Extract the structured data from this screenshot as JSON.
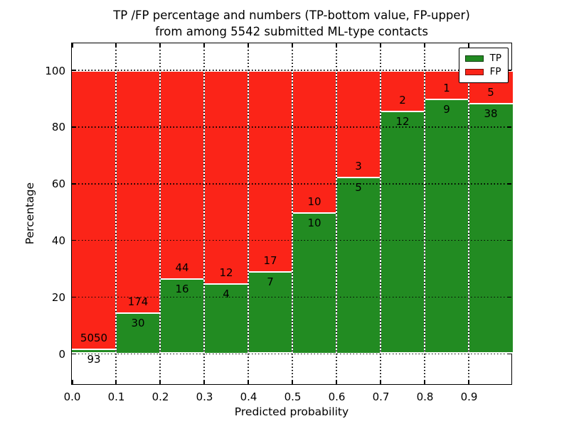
{
  "chart_data": {
    "type": "bar",
    "subtype": "stacked-100-percent",
    "title_line1": "TP /FP percentage and numbers (TP-bottom value, FP-upper)",
    "title_line2": "from among 5542 submitted ML-type contacts",
    "xlabel": "Predicted probability",
    "ylabel": "Percentage",
    "x_tick_labels": [
      "0.0",
      "0.1",
      "0.2",
      "0.3",
      "0.4",
      "0.5",
      "0.6",
      "0.7",
      "0.8",
      "0.9"
    ],
    "y_tick_labels": [
      "0",
      "20",
      "40",
      "60",
      "80",
      "100"
    ],
    "y_tick_values": [
      0,
      20,
      40,
      60,
      80,
      100
    ],
    "xlim": [
      0.0,
      1.0
    ],
    "ylim": [
      -11,
      110
    ],
    "grid": true,
    "bin_edges": [
      0.0,
      0.1,
      0.2,
      0.3,
      0.4,
      0.5,
      0.6,
      0.7,
      0.8,
      0.9,
      1.0
    ],
    "series": [
      {
        "name": "TP",
        "color": "#228b22",
        "counts": [
          93,
          30,
          16,
          4,
          7,
          10,
          5,
          12,
          9,
          38
        ]
      },
      {
        "name": "FP",
        "color": "#fb2418",
        "counts": [
          5050,
          174,
          44,
          12,
          17,
          10,
          3,
          2,
          1,
          5
        ]
      }
    ],
    "tp_percent": [
      1.81,
      14.71,
      26.67,
      25.0,
      29.17,
      50.0,
      62.5,
      85.71,
      90.0,
      88.37
    ],
    "legend": {
      "position": "upper right",
      "labels": [
        "TP",
        "FP"
      ]
    }
  }
}
